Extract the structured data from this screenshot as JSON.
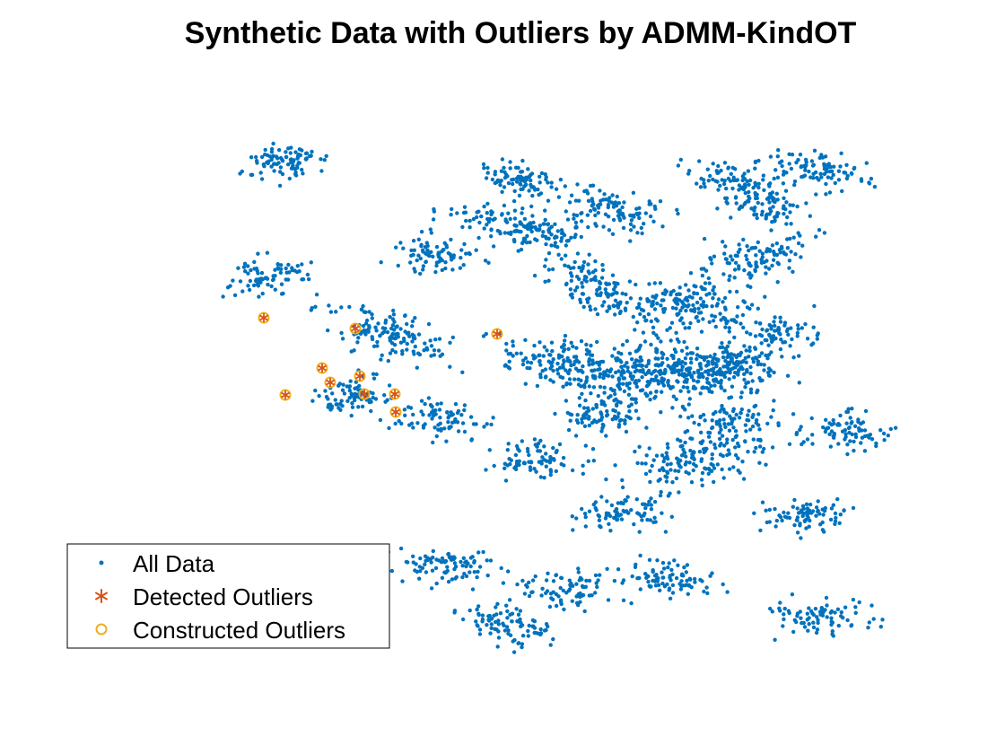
{
  "chart_data": {
    "type": "scatter",
    "title": "Synthetic Data with Outliers by ADMM-KindOT",
    "xlabel": "",
    "ylabel": "",
    "grid": false,
    "axes_visible": false,
    "legend_position": "bottom-left",
    "series": [
      {
        "name": "All Data",
        "marker": "dot",
        "color": "#0072BD",
        "points_per_cluster": 110,
        "clusters": [
          {
            "cx": 321,
            "cy": 180,
            "sx": 22,
            "sy": 10,
            "tilt": -5,
            "n": 90
          },
          {
            "cx": 296,
            "cy": 308,
            "sx": 20,
            "sy": 10,
            "tilt": -5,
            "n": 80
          },
          {
            "cx": 434,
            "cy": 372,
            "sx": 35,
            "sy": 14,
            "tilt": 20,
            "n": 140
          },
          {
            "cx": 392,
            "cy": 442,
            "sx": 20,
            "sy": 11,
            "tilt": -5,
            "n": 80
          },
          {
            "cx": 493,
            "cy": 467,
            "sx": 25,
            "sy": 10,
            "tilt": 0,
            "n": 80
          },
          {
            "cx": 482,
            "cy": 283,
            "sx": 25,
            "sy": 10,
            "tilt": 0,
            "n": 80
          },
          {
            "cx": 575,
            "cy": 200,
            "sx": 18,
            "sy": 10,
            "tilt": 10,
            "n": 80
          },
          {
            "cx": 560,
            "cy": 248,
            "sx": 30,
            "sy": 10,
            "tilt": 10,
            "n": 80
          },
          {
            "cx": 610,
            "cy": 262,
            "sx": 25,
            "sy": 10,
            "tilt": 0,
            "n": 70
          },
          {
            "cx": 680,
            "cy": 233,
            "sx": 30,
            "sy": 12,
            "tilt": 10,
            "n": 110
          },
          {
            "cx": 812,
            "cy": 202,
            "sx": 30,
            "sy": 10,
            "tilt": 10,
            "n": 90
          },
          {
            "cx": 914,
            "cy": 191,
            "sx": 28,
            "sy": 10,
            "tilt": 10,
            "n": 90
          },
          {
            "cx": 852,
            "cy": 230,
            "sx": 25,
            "sy": 10,
            "tilt": 10,
            "n": 70
          },
          {
            "cx": 845,
            "cy": 285,
            "sx": 30,
            "sy": 13,
            "tilt": -15,
            "n": 110
          },
          {
            "cx": 665,
            "cy": 320,
            "sx": 35,
            "sy": 14,
            "tilt": 20,
            "n": 120
          },
          {
            "cx": 770,
            "cy": 340,
            "sx": 40,
            "sy": 15,
            "tilt": 0,
            "n": 170
          },
          {
            "cx": 870,
            "cy": 372,
            "sx": 22,
            "sy": 12,
            "tilt": 0,
            "n": 70
          },
          {
            "cx": 625,
            "cy": 405,
            "sx": 35,
            "sy": 14,
            "tilt": 15,
            "n": 150
          },
          {
            "cx": 740,
            "cy": 415,
            "sx": 45,
            "sy": 17,
            "tilt": 0,
            "n": 340
          },
          {
            "cx": 820,
            "cy": 410,
            "sx": 28,
            "sy": 13,
            "tilt": 5,
            "n": 130
          },
          {
            "cx": 670,
            "cy": 465,
            "sx": 25,
            "sy": 10,
            "tilt": 0,
            "n": 80
          },
          {
            "cx": 813,
            "cy": 466,
            "sx": 25,
            "sy": 9,
            "tilt": 0,
            "n": 70
          },
          {
            "cx": 945,
            "cy": 480,
            "sx": 25,
            "sy": 10,
            "tilt": 0,
            "n": 80
          },
          {
            "cx": 596,
            "cy": 512,
            "sx": 25,
            "sy": 11,
            "tilt": 0,
            "n": 80
          },
          {
            "cx": 780,
            "cy": 510,
            "sx": 45,
            "sy": 13,
            "tilt": -10,
            "n": 170
          },
          {
            "cx": 697,
            "cy": 573,
            "sx": 25,
            "sy": 10,
            "tilt": 0,
            "n": 80
          },
          {
            "cx": 900,
            "cy": 576,
            "sx": 25,
            "sy": 9,
            "tilt": 0,
            "n": 80
          },
          {
            "cx": 496,
            "cy": 628,
            "sx": 27,
            "sy": 11,
            "tilt": 0,
            "n": 90
          },
          {
            "cx": 630,
            "cy": 655,
            "sx": 25,
            "sy": 10,
            "tilt": 0,
            "n": 80
          },
          {
            "cx": 742,
            "cy": 645,
            "sx": 28,
            "sy": 11,
            "tilt": 0,
            "n": 90
          },
          {
            "cx": 570,
            "cy": 697,
            "sx": 25,
            "sy": 11,
            "tilt": 10,
            "n": 90
          },
          {
            "cx": 913,
            "cy": 688,
            "sx": 28,
            "sy": 10,
            "tilt": 0,
            "n": 80
          }
        ]
      },
      {
        "name": "Detected Outliers",
        "marker": "asterisk",
        "color": "#D95319",
        "points": [
          {
            "x": 294,
            "y": 354
          },
          {
            "x": 396,
            "y": 366
          },
          {
            "x": 554,
            "y": 372
          },
          {
            "x": 359,
            "y": 410
          },
          {
            "x": 401,
            "y": 419
          },
          {
            "x": 368,
            "y": 426
          },
          {
            "x": 318,
            "y": 440
          },
          {
            "x": 406,
            "y": 439
          },
          {
            "x": 440,
            "y": 439
          },
          {
            "x": 441,
            "y": 459
          }
        ]
      },
      {
        "name": "Constructed Outliers",
        "marker": "circle",
        "color": "#EDB120",
        "points": [
          {
            "x": 294,
            "y": 354
          },
          {
            "x": 396,
            "y": 366
          },
          {
            "x": 554,
            "y": 372
          },
          {
            "x": 359,
            "y": 410
          },
          {
            "x": 401,
            "y": 419
          },
          {
            "x": 368,
            "y": 426
          },
          {
            "x": 318,
            "y": 440
          },
          {
            "x": 406,
            "y": 439
          },
          {
            "x": 440,
            "y": 439
          },
          {
            "x": 441,
            "y": 459
          }
        ]
      }
    ]
  }
}
